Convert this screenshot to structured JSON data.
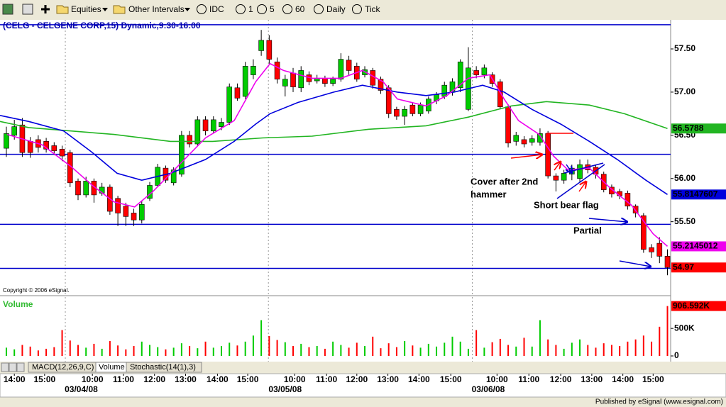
{
  "toolbar": {
    "items": [
      "Equities",
      "Other Intervals",
      "IDC",
      "1",
      "5",
      "60",
      "Daily",
      "Tick"
    ]
  },
  "chart_data": [
    {
      "type": "candlestick",
      "title": "(CELG - CELGENE CORP,15) Dynamic,9:30-16:00",
      "note": "Copyright © 2006 eSignal.",
      "open": [
        56.35,
        56.5,
        56.62,
        56.43,
        56.45,
        56.43,
        56.38,
        56.34,
        56.3,
        55.97,
        55.81,
        55.97,
        55.83,
        55.9,
        55.77,
        55.68,
        55.6,
        55.52,
        55.77,
        55.92,
        56.12,
        55.95,
        56.05,
        56.5,
        56.4,
        56.68,
        56.55,
        56.6,
        56.65,
        57.05,
        56.95,
        57.2,
        57.48,
        57.6,
        57.35,
        57.07,
        57.22,
        57.05,
        57.2,
        57.13,
        57.16,
        57.1,
        57.15,
        57.37,
        57.3,
        57.2,
        57.25,
        57.15,
        57.05,
        56.8,
        56.72,
        56.85,
        56.75,
        56.78,
        56.9,
        56.95,
        57.0,
        57.05,
        56.8,
        57.25,
        57.2,
        57.2,
        57.12,
        56.83,
        56.43,
        56.45,
        56.42,
        56.42,
        56.52,
        56.03,
        55.98,
        56.05,
        56.0,
        56.16,
        56.13,
        56.05,
        55.9,
        55.85,
        55.83,
        55.68,
        55.57,
        55.2,
        55.25,
        55.1
      ],
      "high": [
        56.6,
        56.68,
        56.7,
        56.48,
        56.5,
        56.47,
        56.42,
        56.38,
        56.33,
        56.0,
        56.02,
        56.0,
        55.95,
        55.93,
        55.8,
        55.72,
        55.65,
        55.74,
        55.96,
        56.17,
        56.15,
        56.13,
        56.55,
        56.55,
        56.72,
        56.72,
        56.72,
        56.7,
        57.1,
        57.1,
        57.35,
        57.38,
        57.72,
        57.66,
        57.4,
        57.2,
        57.28,
        57.3,
        57.24,
        57.2,
        57.19,
        57.18,
        57.45,
        57.42,
        57.34,
        57.3,
        57.28,
        57.18,
        57.08,
        56.83,
        56.84,
        56.88,
        56.88,
        56.95,
        57.0,
        57.12,
        57.16,
        57.38,
        57.52,
        57.3,
        57.32,
        57.23,
        57.15,
        56.86,
        56.54,
        56.49,
        56.5,
        56.58,
        56.55,
        56.06,
        56.1,
        56.16,
        56.22,
        56.22,
        56.16,
        56.08,
        55.93,
        55.88,
        55.86,
        55.7,
        55.6,
        55.24,
        55.32,
        55.18
      ],
      "low": [
        56.25,
        56.45,
        56.25,
        56.24,
        56.3,
        56.3,
        56.27,
        56.2,
        55.9,
        55.75,
        55.78,
        55.72,
        55.8,
        55.58,
        55.45,
        55.45,
        55.45,
        55.48,
        55.74,
        55.9,
        55.95,
        55.92,
        56.02,
        56.36,
        56.38,
        56.5,
        56.52,
        56.56,
        56.62,
        56.9,
        56.92,
        57.15,
        57.42,
        57.33,
        57.1,
        56.95,
        57.0,
        57.0,
        57.08,
        57.1,
        57.06,
        57.07,
        57.12,
        57.2,
        57.12,
        57.17,
        57.04,
        56.98,
        56.7,
        56.68,
        56.62,
        56.72,
        56.72,
        56.75,
        56.86,
        56.92,
        56.96,
        57.0,
        56.78,
        57.16,
        57.16,
        57.06,
        56.8,
        56.36,
        56.38,
        56.36,
        56.38,
        56.38,
        56.0,
        55.85,
        55.94,
        55.98,
        55.96,
        56.06,
        56.0,
        55.84,
        55.78,
        55.76,
        55.64,
        55.55,
        55.14,
        55.08,
        55.02,
        54.88
      ],
      "close": [
        56.52,
        56.6,
        56.3,
        56.3,
        56.36,
        56.34,
        56.32,
        56.26,
        55.95,
        55.81,
        55.97,
        55.81,
        55.9,
        55.62,
        55.6,
        55.56,
        55.52,
        55.7,
        55.92,
        56.13,
        55.98,
        56.1,
        56.5,
        56.4,
        56.68,
        56.55,
        56.68,
        56.65,
        57.06,
        56.93,
        57.3,
        57.3,
        57.6,
        57.38,
        57.15,
        57.15,
        57.06,
        57.25,
        57.12,
        57.16,
        57.1,
        57.15,
        57.38,
        57.25,
        57.15,
        57.26,
        57.08,
        57.02,
        56.75,
        56.72,
        56.8,
        56.75,
        56.85,
        56.92,
        56.97,
        57.08,
        57.12,
        57.35,
        57.28,
        57.2,
        57.28,
        57.1,
        56.83,
        56.41,
        56.5,
        56.4,
        56.46,
        56.52,
        56.03,
        55.98,
        56.06,
        56.12,
        56.16,
        56.1,
        56.05,
        55.87,
        55.82,
        55.8,
        55.68,
        55.6,
        55.18,
        55.15,
        55.1,
        54.97
      ],
      "up_color": "#00cc00",
      "down_color": "#ff0000",
      "series": [
        {
          "color": "#22b522",
          "x": [
            -0.8,
            2.8,
            8.1,
            13.5,
            20.6,
            25.9,
            32.2,
            38.4,
            45.5,
            52.7,
            58.0,
            63.4,
            67.8,
            73.2,
            77.6,
            83.0
          ],
          "values": [
            56.66,
            56.59,
            56.55,
            56.51,
            56.43,
            56.43,
            56.47,
            56.49,
            56.57,
            56.61,
            56.71,
            56.84,
            56.89,
            56.85,
            56.75,
            56.5788
          ]
        },
        {
          "color": "#0000dd",
          "x": [
            -0.8,
            2.8,
            7.2,
            10.8,
            13.9,
            17.0,
            20.6,
            25.0,
            28.6,
            31.3,
            33.1,
            36.6,
            41.1,
            44.7,
            49.1,
            52.7,
            56.2,
            59.8,
            62.5,
            66.0,
            69.6,
            73.2,
            76.7,
            80.3,
            83.0
          ],
          "values": [
            56.73,
            56.66,
            56.55,
            56.3,
            56.06,
            55.98,
            56.06,
            56.22,
            56.43,
            56.63,
            56.75,
            56.88,
            57.0,
            57.08,
            57.0,
            56.96,
            57.0,
            57.08,
            57.0,
            56.8,
            56.63,
            56.43,
            56.22,
            55.98,
            55.8147607
          ]
        },
        {
          "color": "#ee00ee",
          "x": [
            0.1,
            4.5,
            8.1,
            10.8,
            13.5,
            16.1,
            18.4,
            21.5,
            25.0,
            28.6,
            31.3,
            33.1,
            34.8,
            38.4,
            42.0,
            44.7,
            47.3,
            49.1,
            52.7,
            55.3,
            58.0,
            60.7,
            62.5,
            64.3,
            66.9,
            68.7,
            70.5,
            73.2,
            75.8,
            78.5,
            81.2,
            83.0
          ],
          "values": [
            56.51,
            56.39,
            56.14,
            55.92,
            55.73,
            55.67,
            55.85,
            56.14,
            56.47,
            56.67,
            57.12,
            57.33,
            57.25,
            57.16,
            57.16,
            57.25,
            57.12,
            56.92,
            56.84,
            56.96,
            57.16,
            57.2,
            56.92,
            56.67,
            56.51,
            56.26,
            56.1,
            56.12,
            55.89,
            55.69,
            55.36,
            55.2145012
          ]
        }
      ],
      "hlines": {
        "color": "#0000cc",
        "values": [
          57.78,
          56.28,
          55.47,
          54.96
        ]
      },
      "annotations": [
        "Cover after 2nd",
        "hammer",
        "Short bear flag",
        "Partial"
      ],
      "xlim": [
        -0.8,
        83.4
      ],
      "ylim": [
        54.66,
        57.82
      ],
      "yticks": [
        {
          "value": 57.5,
          "label": "57.50"
        },
        {
          "value": 57.0,
          "label": "57.00"
        },
        {
          "value": 56.5,
          "label": "56.50"
        },
        {
          "value": 56.0,
          "label": "56.00"
        },
        {
          "value": 55.5,
          "label": "55.50"
        }
      ],
      "xticks": [
        {
          "value": 1.0,
          "label": "14:00"
        },
        {
          "value": 4.8,
          "label": "15:00"
        },
        {
          "value": 10.8,
          "label": "10:00"
        },
        {
          "value": 14.7,
          "label": "11:00"
        },
        {
          "value": 18.6,
          "label": "12:00"
        },
        {
          "value": 22.5,
          "label": "13:00"
        },
        {
          "value": 26.5,
          "label": "14:00"
        },
        {
          "value": 30.3,
          "label": "15:00"
        },
        {
          "value": 36.2,
          "label": "10:00"
        },
        {
          "value": 40.2,
          "label": "11:00"
        },
        {
          "value": 44.0,
          "label": "12:00"
        },
        {
          "value": 47.9,
          "label": "13:00"
        },
        {
          "value": 51.8,
          "label": "14:00"
        },
        {
          "value": 55.8,
          "label": "15:00"
        },
        {
          "value": 61.6,
          "label": "10:00"
        },
        {
          "value": 65.6,
          "label": "11:00"
        },
        {
          "value": 69.6,
          "label": "12:00"
        },
        {
          "value": 73.5,
          "label": "13:00"
        },
        {
          "value": 77.4,
          "label": "14:00"
        },
        {
          "value": 81.2,
          "label": "15:00"
        }
      ],
      "date_ticks": [
        {
          "value": 9.4,
          "label": "03/04/08"
        },
        {
          "value": 35.0,
          "label": "03/05/08"
        },
        {
          "value": 60.5,
          "label": "03/06/08"
        }
      ],
      "session_breaks": [
        7.4,
        32.9,
        58.5
      ]
    },
    {
      "type": "bar",
      "title": "Volume",
      "title_color": "#33bb33",
      "values": [
        150000,
        120000,
        200000,
        170000,
        100000,
        130000,
        160000,
        470000,
        280000,
        200000,
        150000,
        220000,
        130000,
        270000,
        190000,
        120000,
        180000,
        260000,
        200000,
        160000,
        120000,
        150000,
        230000,
        180000,
        140000,
        260000,
        150000,
        180000,
        240000,
        190000,
        260000,
        370000,
        650000,
        360000,
        290000,
        250000,
        180000,
        220000,
        160000,
        180000,
        130000,
        260000,
        200000,
        150000,
        240000,
        180000,
        350000,
        140000,
        230000,
        160000,
        270000,
        190000,
        150000,
        220000,
        170000,
        240000,
        350000,
        260000,
        130000,
        470000,
        150000,
        250000,
        310000,
        200000,
        170000,
        330000,
        170000,
        650000,
        300000,
        200000,
        130000,
        240000,
        300000,
        200000,
        150000,
        230000,
        200000,
        180000,
        260000,
        300000,
        370000,
        260000,
        530000,
        906592
      ],
      "last_label": {
        "value": 906592,
        "label": "906.592K"
      },
      "ylim": [
        0,
        1030000
      ],
      "yticks": [
        0,
        {
          "value": 500000,
          "label": "500K"
        }
      ]
    }
  ],
  "tabs": [
    "MACD(12,26,9,C)",
    "Volume",
    "Stochastic(14(1),3)"
  ],
  "footer": "Published by eSignal (www.esignal.com)"
}
